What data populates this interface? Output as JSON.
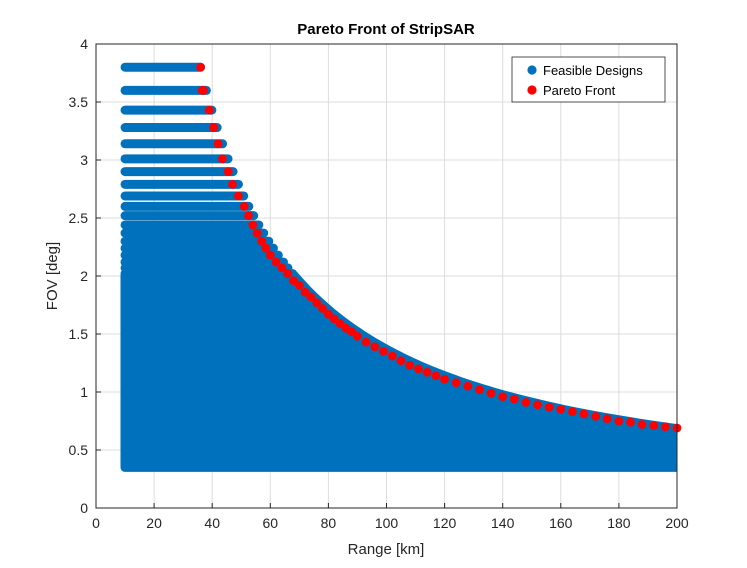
{
  "chart_data": {
    "type": "scatter",
    "title": "Pareto Front of StripSAR",
    "xlabel": "Range [km]",
    "ylabel": "FOV [deg]",
    "xlim": [
      0,
      200
    ],
    "ylim": [
      0,
      4
    ],
    "xticks": [
      "0",
      "20",
      "40",
      "60",
      "80",
      "100",
      "120",
      "140",
      "160",
      "180",
      "200"
    ],
    "yticks": [
      "0",
      "0.5",
      "1",
      "1.5",
      "2",
      "2.5",
      "3",
      "3.5",
      "4"
    ],
    "grid": true,
    "legend_position": "top-right",
    "legend": [
      "Feasible Designs",
      "Pareto Front"
    ],
    "colors": {
      "feasible": "#0072BD",
      "pareto": "#FF0000"
    },
    "feasible_region": {
      "x_min": 10,
      "x_max": 200,
      "y_min": 0.35,
      "boundary_constant": 136.8,
      "banded_rows_above_y": 2.0,
      "band_rows_y": [
        2.02,
        2.07,
        2.12,
        2.18,
        2.24,
        2.3,
        2.37,
        2.44,
        2.52,
        2.6,
        2.69,
        2.79,
        2.9,
        3.01,
        3.14,
        3.28,
        3.43,
        3.6,
        3.8
      ]
    },
    "series": [
      {
        "name": "Pareto Front",
        "x": [
          36,
          36.5,
          37,
          39,
          40.5,
          42,
          43.5,
          45.5,
          47,
          49,
          51,
          52.5,
          54,
          55.5,
          57,
          58.5,
          60,
          62,
          64,
          66,
          68,
          70,
          72,
          74,
          76,
          78,
          80,
          82,
          84,
          86,
          88,
          90,
          93,
          96,
          99,
          102,
          105,
          108,
          111,
          114,
          117,
          120,
          124,
          128,
          132,
          136,
          140,
          144,
          148,
          152,
          156,
          160,
          164,
          168,
          172,
          176,
          180,
          184,
          188,
          192,
          196,
          200
        ],
        "y": [
          3.8,
          3.6,
          3.6,
          3.43,
          3.28,
          3.14,
          3.01,
          2.9,
          2.79,
          2.69,
          2.6,
          2.52,
          2.44,
          2.37,
          2.3,
          2.24,
          2.18,
          2.12,
          2.07,
          2.02,
          1.96,
          1.92,
          1.86,
          1.82,
          1.77,
          1.72,
          1.67,
          1.63,
          1.59,
          1.55,
          1.52,
          1.48,
          1.43,
          1.39,
          1.35,
          1.31,
          1.27,
          1.23,
          1.2,
          1.17,
          1.14,
          1.11,
          1.08,
          1.05,
          1.02,
          0.99,
          0.96,
          0.94,
          0.91,
          0.89,
          0.87,
          0.85,
          0.83,
          0.81,
          0.79,
          0.77,
          0.75,
          0.74,
          0.72,
          0.71,
          0.7,
          0.69
        ]
      }
    ]
  }
}
